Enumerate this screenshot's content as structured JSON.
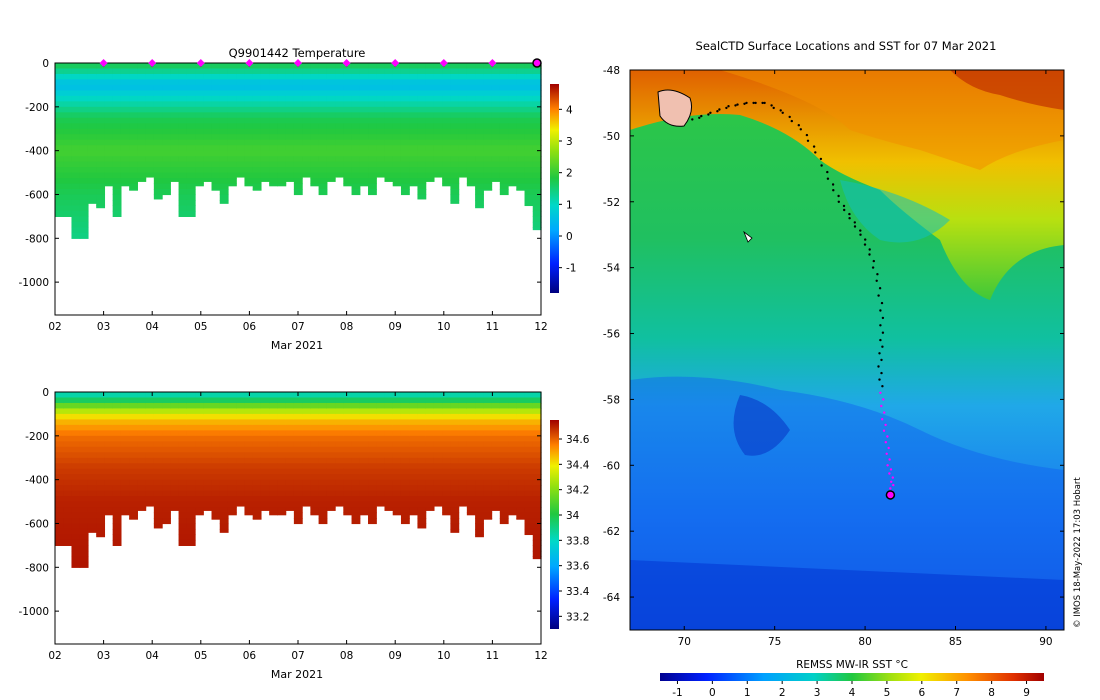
{
  "chart_data": [
    {
      "type": "heatmap",
      "id": "temp",
      "title": "Q9901442  Temperature",
      "xlabel": "Mar 2021",
      "ylabel": "",
      "x_ticks": [
        "02",
        "03",
        "04",
        "05",
        "06",
        "07",
        "08",
        "09",
        "10",
        "11",
        "12"
      ],
      "xlim": [
        2,
        12
      ],
      "y_ticks": [
        0,
        -200,
        -400,
        -600,
        -800,
        -1000
      ],
      "ylim": [
        -1150,
        0
      ],
      "colorbar": {
        "ticks": [
          4,
          3,
          2,
          1,
          0,
          -1
        ],
        "range": [
          -1.8,
          4.8
        ]
      },
      "profile_markers_day": [
        3,
        4,
        5,
        6,
        7,
        8,
        9,
        10,
        11
      ],
      "current_marker_day": 12,
      "max_depths": [
        700,
        700,
        800,
        800,
        640,
        660,
        560,
        700,
        560,
        580,
        540,
        520,
        620,
        600,
        540,
        700,
        700,
        560,
        540,
        580,
        640,
        560,
        520,
        560,
        580,
        540,
        560,
        560,
        540,
        600,
        520,
        560,
        600,
        540,
        520,
        560,
        600,
        560,
        600,
        520,
        540,
        560,
        600,
        560,
        620,
        540,
        520,
        560,
        640,
        520,
        560,
        660,
        580,
        540,
        600,
        560,
        580,
        650,
        760
      ],
      "values_profile": {
        "depth": [
          0,
          40,
          100,
          150,
          250,
          400,
          600,
          800
        ],
        "value": [
          1.8,
          1.3,
          0.5,
          0.9,
          1.7,
          2.1,
          1.7,
          1.4
        ]
      }
    },
    {
      "type": "heatmap",
      "id": "salt",
      "title": "",
      "xlabel": "Mar 2021",
      "ylabel": "",
      "x_ticks": [
        "02",
        "03",
        "04",
        "05",
        "06",
        "07",
        "08",
        "09",
        "10",
        "11",
        "12"
      ],
      "xlim": [
        2,
        12
      ],
      "y_ticks": [
        0,
        -200,
        -400,
        -600,
        -800,
        -1000
      ],
      "ylim": [
        -1150,
        0
      ],
      "colorbar": {
        "ticks": [
          34.6,
          34.4,
          34.2,
          34.0,
          33.8,
          33.6,
          33.4,
          33.2
        ],
        "tick_labels": [
          "34.6",
          "34.4",
          "34.2",
          "34",
          "33.8",
          "33.6",
          "33.4",
          "33.2"
        ],
        "range": [
          33.1,
          34.75
        ]
      },
      "values_profile": {
        "depth": [
          0,
          30,
          70,
          120,
          200,
          350,
          500,
          800
        ],
        "value": [
          33.8,
          33.9,
          34.2,
          34.45,
          34.58,
          34.66,
          34.7,
          34.72
        ]
      }
    },
    {
      "type": "map",
      "id": "sst",
      "title": "SealCTD Surface Locations and SST for 07 Mar 2021",
      "x_ticks": [
        70,
        75,
        80,
        85,
        90
      ],
      "xlim": [
        67,
        91
      ],
      "y_ticks": [
        -48,
        -50,
        -52,
        -54,
        -56,
        -58,
        -60,
        -62,
        -64
      ],
      "ylim": [
        -65,
        -48
      ],
      "colorbar": {
        "label": "REMSS MW-IR SST °C",
        "ticks": [
          -1,
          0,
          1,
          2,
          3,
          4,
          5,
          6,
          7,
          8,
          9
        ],
        "range": [
          -1.5,
          9.5
        ]
      },
      "credit": "© IMOS 18-May-2022 17:03 Hobart",
      "track": [
        [
          70.5,
          -49.5
        ],
        [
          71.5,
          -49.3
        ],
        [
          72.5,
          -49.1
        ],
        [
          73.5,
          -49.0
        ],
        [
          74.5,
          -49.0
        ],
        [
          75.5,
          -49.3
        ],
        [
          76.5,
          -49.8
        ],
        [
          77.3,
          -50.5
        ],
        [
          78.0,
          -51.3
        ],
        [
          78.6,
          -52.0
        ],
        [
          79.2,
          -52.5
        ],
        [
          79.8,
          -53.0
        ],
        [
          80.3,
          -53.6
        ],
        [
          80.7,
          -54.4
        ],
        [
          80.9,
          -55.3
        ],
        [
          80.9,
          -56.2
        ],
        [
          80.8,
          -57.0
        ],
        [
          80.9,
          -57.8
        ],
        [
          81.0,
          -58.6
        ],
        [
          81.2,
          -59.3
        ],
        [
          81.3,
          -60.0
        ],
        [
          81.5,
          -60.5
        ],
        [
          81.4,
          -60.9
        ]
      ],
      "recent_track_count": 6,
      "last_position": [
        81.4,
        -60.9
      ]
    }
  ]
}
